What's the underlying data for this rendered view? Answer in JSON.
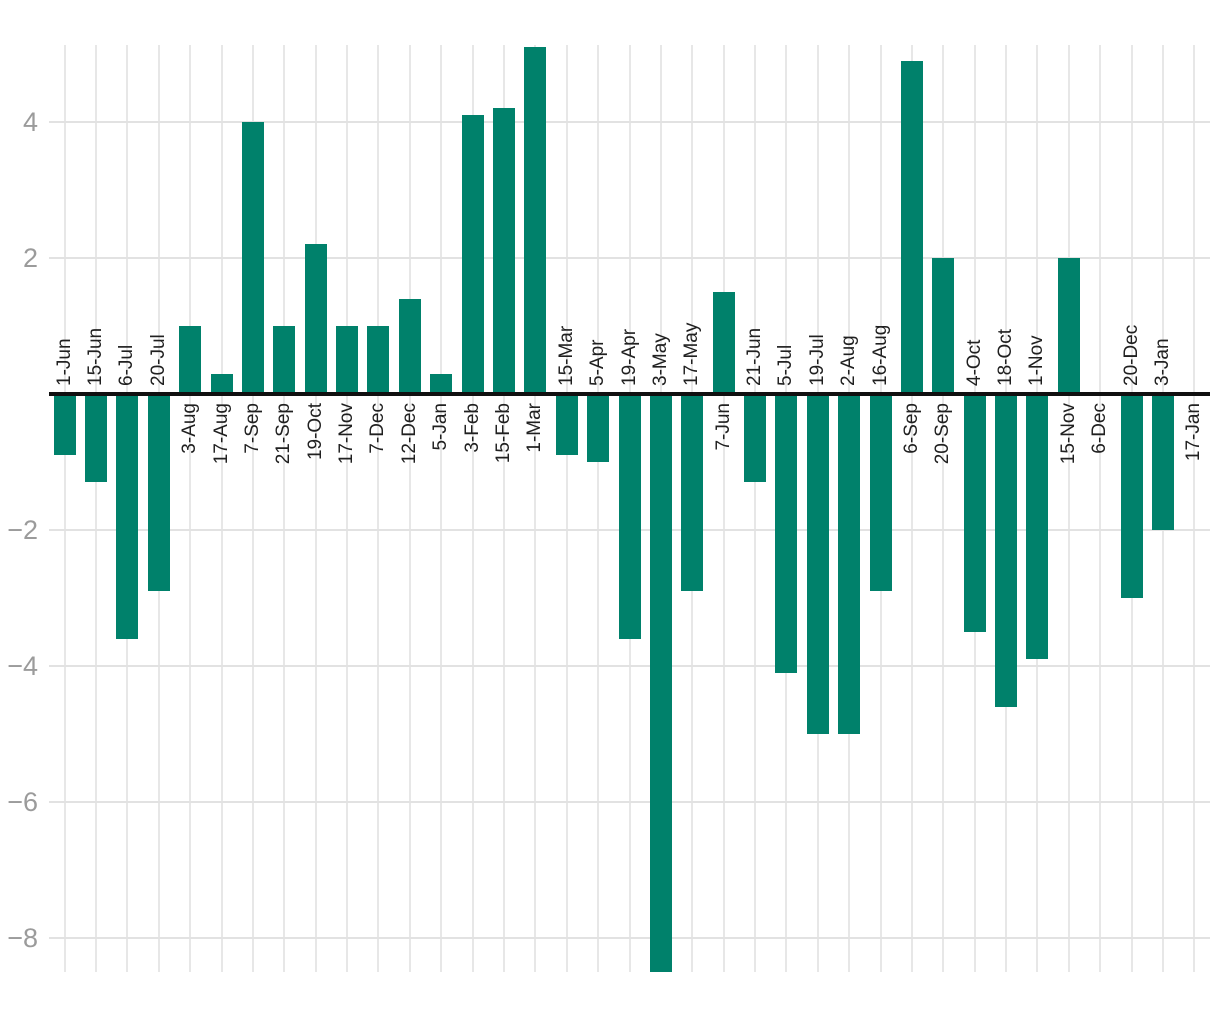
{
  "chart_data": {
    "type": "bar",
    "title": "",
    "xlabel": "",
    "ylabel": "",
    "categories": [
      "1-Jun",
      "15-Jun",
      "6-Jul",
      "20-Jul",
      "3-Aug",
      "17-Aug",
      "7-Sep",
      "21-Sep",
      "19-Oct",
      "17-Nov",
      "7-Dec",
      "12-Dec",
      "5-Jan",
      "3-Feb",
      "15-Feb",
      "1-Mar",
      "15-Mar",
      "5-Apr",
      "19-Apr",
      "3-May",
      "17-May",
      "7-Jun",
      "21-Jun",
      "5-Jul",
      "19-Jul",
      "2-Aug",
      "16-Aug",
      "6-Sep",
      "20-Sep",
      "4-Oct",
      "18-Oct",
      "1-Nov",
      "15-Nov",
      "6-Dec",
      "20-Dec",
      "3-Jan",
      "17-Jan"
    ],
    "values": [
      -0.9,
      -1.3,
      -3.6,
      -2.9,
      1.0,
      0.3,
      4.0,
      1.0,
      2.2,
      1.0,
      1.0,
      1.4,
      0.3,
      4.1,
      4.2,
      5.1,
      -0.9,
      -1.0,
      -3.6,
      -8.5,
      -2.9,
      1.5,
      -1.3,
      -4.1,
      -5.0,
      -5.0,
      -2.9,
      4.9,
      2.0,
      -3.5,
      -4.6,
      -3.9,
      2.0,
      0,
      -3.0,
      -2.0,
      0
    ],
    "y_ticks": [
      {
        "value": 4,
        "label": "4"
      },
      {
        "value": 2,
        "label": "2"
      },
      {
        "value": -2,
        "label": "−2"
      },
      {
        "value": -4,
        "label": "−4"
      },
      {
        "value": -6,
        "label": "−6"
      },
      {
        "value": -8,
        "label": "−8"
      }
    ],
    "ylim": [
      -8.5,
      5.15
    ],
    "grid": true,
    "legend_position": "none",
    "label_side_rule": "labels sit below axis for zero/positive bars, above axis for negative bars, rotated 90° counterclockwise",
    "colors": {
      "bar": "#00816B",
      "grid_vertical": "#e7e7e7",
      "grid_horizontal": "#e2e2e2",
      "axis_line": "#101010",
      "x_tick_text": "#202020",
      "y_tick_text": "#9b9b9b",
      "background": "#ffffff"
    }
  }
}
